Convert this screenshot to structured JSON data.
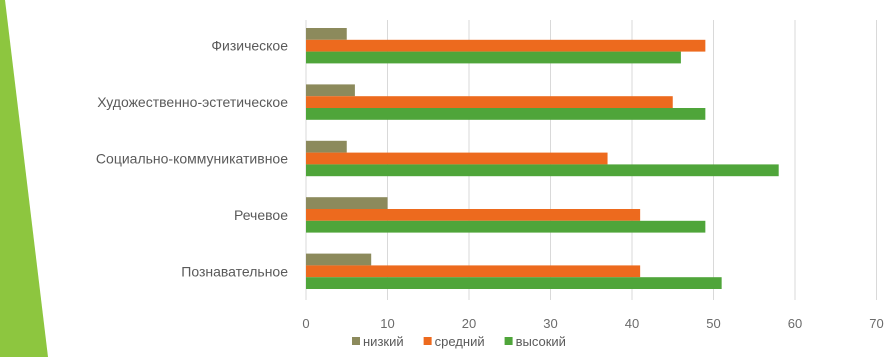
{
  "colors": {
    "accent_stripe": "#8dc63f",
    "gridline": "#d9d9d9"
  },
  "chart_data": {
    "type": "bar",
    "orientation": "horizontal",
    "categories": [
      "Физическое",
      "Художественно-эстетическое",
      "Социально-коммуникативное",
      "Речевое",
      "Познавательное"
    ],
    "series": [
      {
        "name": "низкий",
        "color": "#8c8a5c",
        "values": [
          5,
          6,
          5,
          10,
          8
        ]
      },
      {
        "name": "средний",
        "color": "#ed6a1e",
        "values": [
          49,
          45,
          37,
          41,
          41
        ]
      },
      {
        "name": "высокий",
        "color": "#4fa53a",
        "values": [
          46,
          49,
          58,
          49,
          51
        ]
      }
    ],
    "xlim": [
      0,
      70
    ],
    "xticks": [
      "0",
      "10",
      "20",
      "30",
      "40",
      "50",
      "60",
      "70"
    ],
    "grid": true,
    "legend": "bottom"
  }
}
